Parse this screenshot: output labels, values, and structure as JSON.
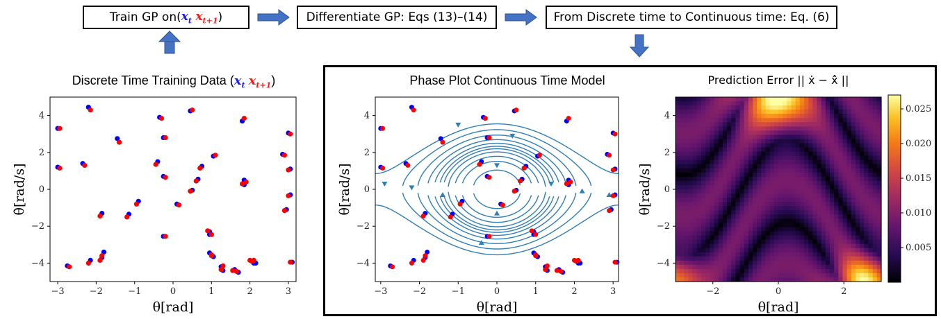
{
  "pipeline": {
    "step1": {
      "label": "Train GP on ",
      "x1": "x",
      "x1_sub": "t",
      "x2": "x",
      "x2_sub": "t+1",
      "close": ")",
      "open": "("
    },
    "step2": {
      "label": "Differentiate GP: Eqs (13)–(14)"
    },
    "step3": {
      "label": "From Discrete time to Continuous time: Eq. (6)"
    }
  },
  "panels": {
    "training": {
      "title": "Discrete Time Training Data (",
      "x1": "x",
      "x1_sub": "t",
      "x2": "x",
      "x2_sub": "t+1",
      "close": ")"
    },
    "phase": {
      "title": "Phase Plot Continuous Time Model"
    },
    "error": {
      "title": "Prediction Error || ẋ − x̂̇ ||"
    }
  },
  "colors": {
    "current_state": "#0000ff",
    "next_state": "#ff0000",
    "streamline": "#2e7eb8",
    "arrow": "#4472c4"
  },
  "icons": {
    "pipeline_arrow": "right-arrow-icon",
    "down_arrow": "down-arrow-icon",
    "up_arrow": "up-arrow-icon"
  },
  "chart_data": [
    {
      "type": "scatter",
      "id": "training",
      "xlabel": "θ[rad]",
      "ylabel": "θ̇[rad/s]",
      "xlim": [
        -3.2,
        3.2
      ],
      "ylim": [
        -5,
        5
      ],
      "xticks": [
        "-3",
        "-2",
        "-1",
        "0",
        "1",
        "2",
        "3"
      ],
      "yticks": [
        "-4",
        "-2",
        "0",
        "2",
        "4"
      ],
      "series": [
        {
          "points": [
            [
              -3.0,
              3.3
            ],
            [
              -3.0,
              1.2
            ],
            [
              -2.2,
              4.45
            ],
            [
              -2.35,
              1.4
            ],
            [
              -2.75,
              -4.15
            ],
            [
              -2.15,
              -3.85
            ],
            [
              -1.85,
              -1.3
            ],
            [
              -1.85,
              -3.7
            ],
            [
              -1.8,
              -3.4
            ],
            [
              -1.45,
              2.75
            ],
            [
              -1.15,
              -1.35
            ],
            [
              -0.9,
              -0.65
            ],
            [
              -0.4,
              1.5
            ],
            [
              -0.35,
              3.9
            ],
            [
              -0.25,
              2.8
            ],
            [
              -0.25,
              0.7
            ],
            [
              -0.25,
              -2.55
            ],
            [
              0.1,
              -0.8
            ],
            [
              0.45,
              4.25
            ],
            [
              0.5,
              -0.05
            ],
            [
              0.65,
              0.55
            ],
            [
              0.75,
              1.25
            ],
            [
              0.95,
              -2.3
            ],
            [
              0.95,
              -2.45
            ],
            [
              0.95,
              -3.45
            ],
            [
              1.05,
              1.8
            ],
            [
              1.05,
              -3.65
            ],
            [
              1.25,
              -4.2
            ],
            [
              1.3,
              -4.4
            ],
            [
              1.6,
              -4.35
            ],
            [
              1.7,
              -4.5
            ],
            [
              1.8,
              3.7
            ],
            [
              1.85,
              0.5
            ],
            [
              1.85,
              0.25
            ],
            [
              2.05,
              -3.9
            ],
            [
              2.1,
              -4.0
            ],
            [
              2.15,
              -4.0
            ],
            [
              2.85,
              1.9
            ],
            [
              2.95,
              -1.1
            ],
            [
              3.0,
              3.05
            ],
            [
              3.05,
              1.1
            ],
            [
              3.05,
              -0.3
            ],
            [
              3.1,
              -3.95
            ]
          ]
        },
        {
          "points": [
            [
              -2.95,
              3.3
            ],
            [
              -2.95,
              1.15
            ],
            [
              -2.15,
              4.3
            ],
            [
              -2.3,
              1.3
            ],
            [
              -2.7,
              -4.2
            ],
            [
              -2.2,
              -4.0
            ],
            [
              -1.9,
              -1.45
            ],
            [
              -1.9,
              -3.85
            ],
            [
              -1.85,
              -3.6
            ],
            [
              -1.4,
              2.55
            ],
            [
              -1.2,
              -1.5
            ],
            [
              -0.95,
              -0.8
            ],
            [
              -0.45,
              1.35
            ],
            [
              -0.3,
              3.85
            ],
            [
              -0.2,
              2.8
            ],
            [
              -0.2,
              0.65
            ],
            [
              -0.2,
              -2.55
            ],
            [
              0.15,
              -0.85
            ],
            [
              0.5,
              4.3
            ],
            [
              0.45,
              -0.1
            ],
            [
              0.6,
              0.45
            ],
            [
              0.7,
              1.15
            ],
            [
              1.0,
              -2.45
            ],
            [
              0.9,
              -2.25
            ],
            [
              1.0,
              -3.55
            ],
            [
              1.1,
              1.85
            ],
            [
              1.0,
              -3.6
            ],
            [
              1.3,
              -4.15
            ],
            [
              1.25,
              -4.35
            ],
            [
              1.55,
              -4.4
            ],
            [
              1.65,
              -4.45
            ],
            [
              1.85,
              3.85
            ],
            [
              1.9,
              0.4
            ],
            [
              1.8,
              0.3
            ],
            [
              2.0,
              -3.85
            ],
            [
              2.05,
              -3.9
            ],
            [
              2.1,
              -3.85
            ],
            [
              2.9,
              1.85
            ],
            [
              2.9,
              -1.15
            ],
            [
              3.05,
              3.0
            ],
            [
              3.0,
              1.05
            ],
            [
              3.0,
              -0.35
            ],
            [
              3.05,
              -3.95
            ]
          ]
        }
      ]
    },
    {
      "type": "scatter",
      "id": "phase",
      "xlabel": "θ[rad]",
      "ylabel": "θ[rad/s]",
      "xlim": [
        -3.14,
        3.14
      ],
      "ylim": [
        -5,
        5
      ],
      "xticks": [
        "-3",
        "-2",
        "-1",
        "0",
        "1",
        "2",
        "3"
      ],
      "yticks": [
        "-4",
        "-2",
        "0",
        "2",
        "4"
      ]
    },
    {
      "type": "heatmap",
      "id": "error",
      "xlabel": "θ[rad]",
      "ylabel": "θ[rad/s]",
      "xlim": [
        -3.14,
        3.14
      ],
      "ylim": [
        -5,
        5
      ],
      "xticks": [
        "-2",
        "0",
        "2"
      ],
      "yticks": [
        "-4",
        "-2",
        "0",
        "2",
        "4"
      ],
      "colorbar_ticks": [
        "0.025",
        "0.020",
        "0.015",
        "0.010",
        "0.005"
      ],
      "colorbar_values": [
        0.025,
        0.02,
        0.015,
        0.01,
        0.005
      ],
      "zlim": [
        0.0,
        0.027
      ]
    }
  ]
}
